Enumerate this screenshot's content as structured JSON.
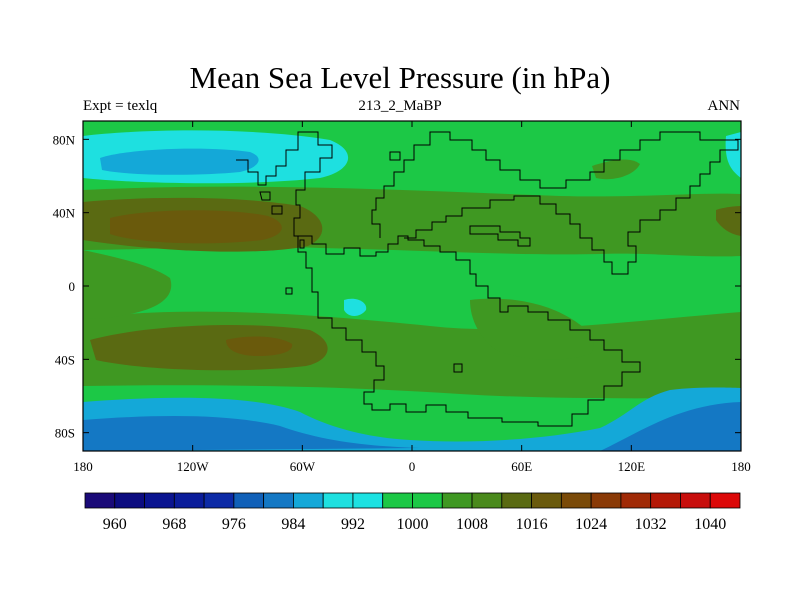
{
  "chart_data": {
    "type": "filled-contour-map",
    "title": "Mean Sea Level Pressure (in hPa)",
    "left_label": "Expt = texlq",
    "center_label": "213_2_MaBP",
    "right_label": "ANN",
    "x_ticks": [
      "180",
      "120W",
      "60W",
      "0",
      "60E",
      "120E",
      "180"
    ],
    "x_values": [
      -180,
      -120,
      -60,
      0,
      60,
      120,
      180
    ],
    "y_ticks": [
      "80N",
      "40N",
      "0",
      "40S",
      "80S"
    ],
    "y_values": [
      80,
      40,
      0,
      -40,
      -80
    ],
    "lon_range": [
      -180,
      180
    ],
    "lat_range": [
      -90,
      90
    ],
    "colorbar": {
      "labels": [
        "960",
        "968",
        "976",
        "984",
        "992",
        "1000",
        "1008",
        "1016",
        "1024",
        "1032",
        "1040"
      ],
      "label_values": [
        960,
        968,
        976,
        984,
        992,
        1000,
        1008,
        1016,
        1024,
        1032,
        1040
      ],
      "levels": [
        956,
        960,
        964,
        968,
        972,
        976,
        980,
        984,
        988,
        992,
        996,
        1000,
        1004,
        1008,
        1012,
        1016,
        1020,
        1024,
        1028,
        1032,
        1036,
        1040,
        1044
      ],
      "colors": [
        "#1a0a78",
        "#0c0c80",
        "#0a1490",
        "#0a1c9a",
        "#0c2aa6",
        "#1060b8",
        "#1478c4",
        "#14a8d8",
        "#1ee0e0",
        "#1ce2e2",
        "#1cc846",
        "#1cc846",
        "#3f9822",
        "#4a8a1c",
        "#5a6a12",
        "#6a5a0c",
        "#7a4a08",
        "#8a3a06",
        "#a02a06",
        "#b41806",
        "#c80e0c",
        "#dc0808"
      ]
    },
    "fields": [
      {
        "name": "background",
        "value": 996
      },
      {
        "name": "northern-subtropical-belt",
        "value": 1004
      },
      {
        "name": "southern-subtropical-belt",
        "value": 1004
      },
      {
        "name": "tropical-americas-belt",
        "value": 1004
      },
      {
        "name": "tropical-africa-belt",
        "value": 1004
      },
      {
        "name": "north-pacific-high",
        "value": 1012
      },
      {
        "name": "south-pacific-high",
        "value": 1012
      },
      {
        "name": "north-pacific-high-core",
        "value": 1016
      },
      {
        "name": "south-pacific-high-core",
        "value": 1016
      },
      {
        "name": "arctic-low",
        "value": 988
      },
      {
        "name": "arctic-low-core",
        "value": 984
      },
      {
        "name": "southern-ocean-low",
        "value": 984
      },
      {
        "name": "southern-ocean-low-core",
        "value": 980
      },
      {
        "name": "pangea-interior-low",
        "value": 988
      },
      {
        "name": "east-asia-green",
        "value": 1004
      },
      {
        "name": "east-pacific-high-edge",
        "value": 1012
      }
    ]
  }
}
